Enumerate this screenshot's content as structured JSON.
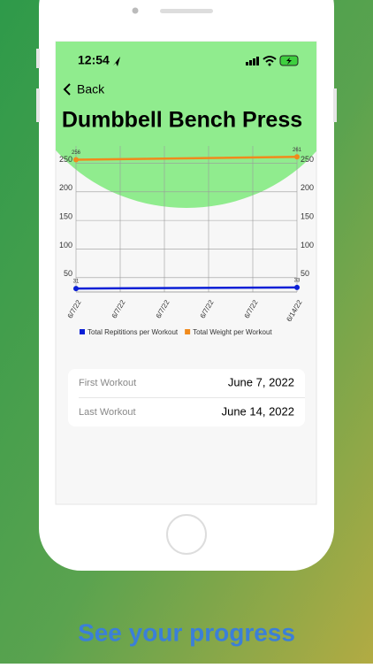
{
  "status_bar": {
    "time": "12:54"
  },
  "nav": {
    "back": "Back"
  },
  "title": "Dumbbell Bench Press",
  "chart_data": {
    "type": "line",
    "x": [
      0,
      7
    ],
    "xlim": [
      0,
      7
    ],
    "xticks": [
      {
        "value": 0,
        "label": "6/7/22"
      },
      {
        "value": 1.4,
        "label": "6/7/22"
      },
      {
        "value": 2.8,
        "label": "6/7/22"
      },
      {
        "value": 4.2,
        "label": "6/7/22"
      },
      {
        "value": 5.6,
        "label": "6/7/22"
      },
      {
        "value": 7,
        "label": "6/14/22"
      }
    ],
    "ylim": [
      25,
      280
    ],
    "yticks": [
      50,
      100,
      150,
      200,
      250
    ],
    "grid": true,
    "legend": "bottom",
    "series": [
      {
        "name": "Total Repititions per Workout",
        "color": "#0a1fd6",
        "values": [
          31,
          33
        ]
      },
      {
        "name": "Total Weight per Workout",
        "color": "#f08a1c",
        "values": [
          256,
          261
        ]
      }
    ]
  },
  "details": {
    "rows": [
      {
        "label": "First Workout",
        "value": "June 7, 2022"
      },
      {
        "label": "Last Workout",
        "value": "June 14, 2022"
      }
    ]
  },
  "caption": "See your progress"
}
